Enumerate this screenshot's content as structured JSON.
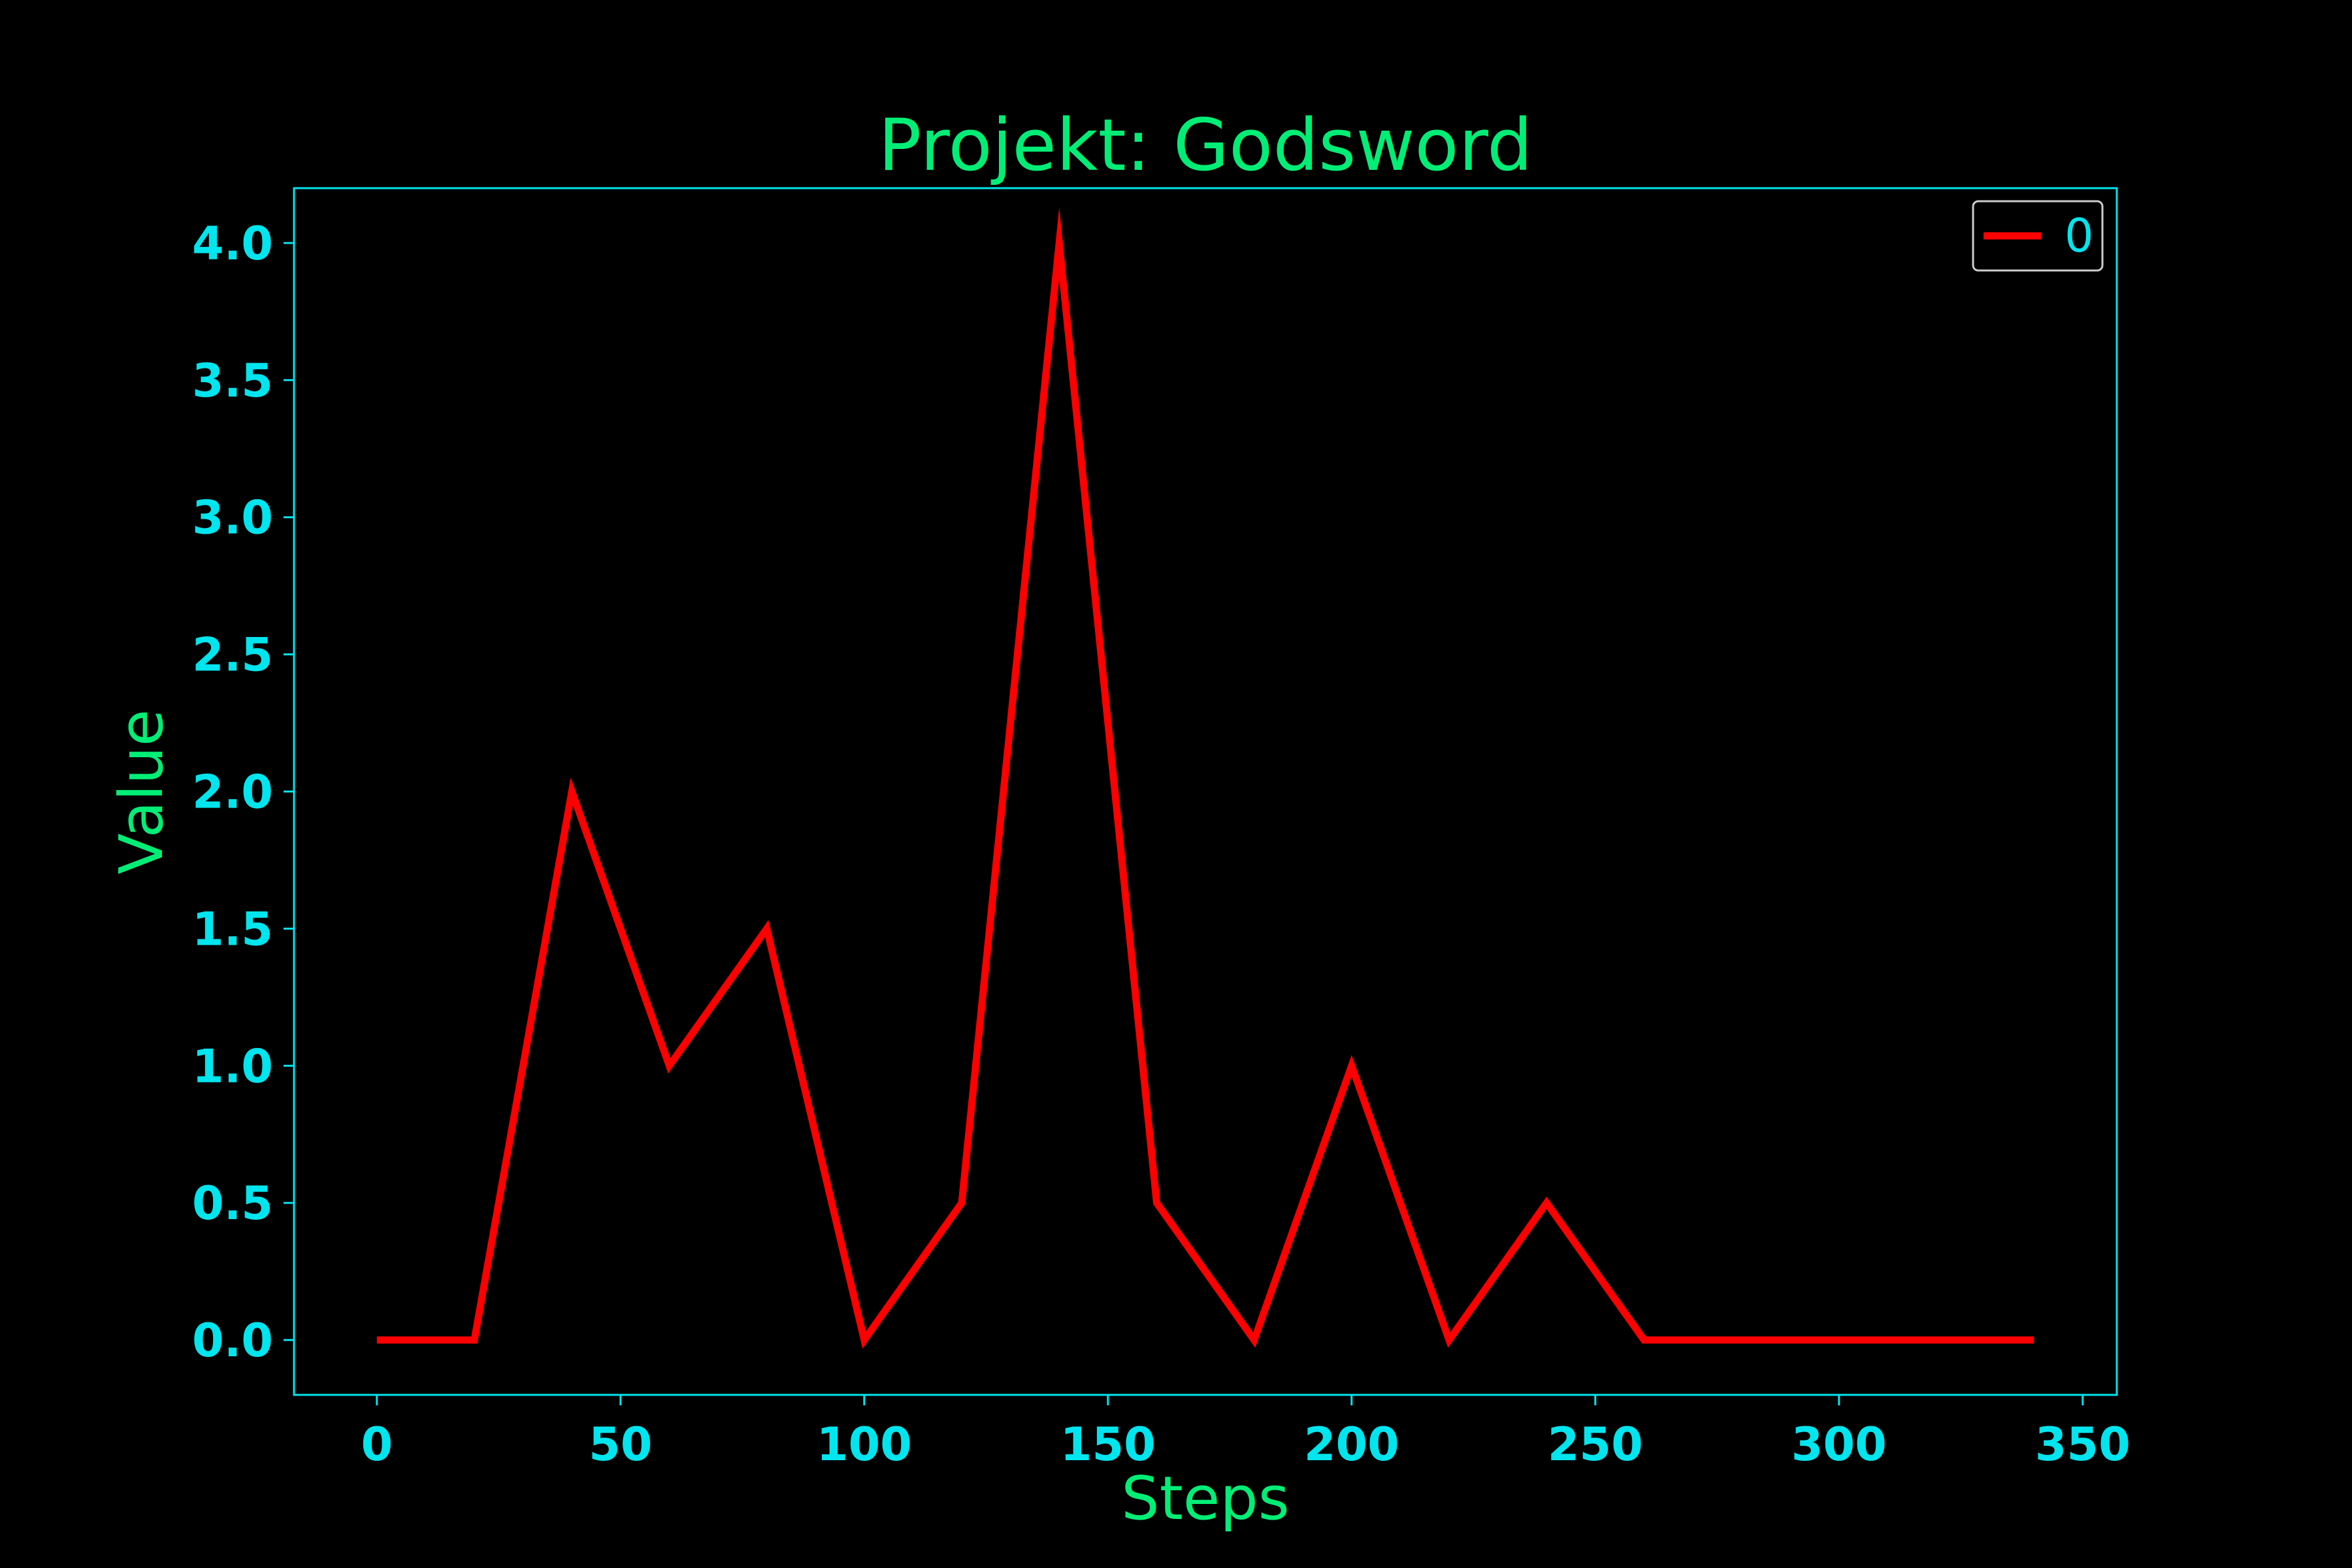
{
  "colors": {
    "background": "#000000",
    "axes": "#00e5ee",
    "tick_labels": "#00e5ee",
    "title": "#00ee76",
    "axis_labels": "#00ee76",
    "series_line": "#ff0000",
    "legend_text": "#00e5ee",
    "legend_border": "#cccccc"
  },
  "chart_data": {
    "type": "line",
    "title": "Projekt: Godsword",
    "xlabel": "Steps",
    "ylabel": "Value",
    "xlim": [
      -17,
      357
    ],
    "ylim": [
      -0.2,
      4.2
    ],
    "xticks": [
      0,
      50,
      100,
      150,
      200,
      250,
      300,
      350
    ],
    "xtick_labels": [
      "0",
      "50",
      "100",
      "150",
      "200",
      "250",
      "300",
      "350"
    ],
    "yticks": [
      0.0,
      0.5,
      1.0,
      1.5,
      2.0,
      2.5,
      3.0,
      3.5,
      4.0
    ],
    "ytick_labels": [
      "0.0",
      "0.5",
      "1.0",
      "1.5",
      "2.0",
      "2.5",
      "3.0",
      "3.5",
      "4.0"
    ],
    "grid": false,
    "legend_position": "top-right",
    "series": [
      {
        "name": "0",
        "x": [
          0,
          20,
          40,
          60,
          80,
          100,
          120,
          140,
          160,
          180,
          200,
          220,
          240,
          260,
          280,
          300,
          320,
          340
        ],
        "values": [
          0,
          0,
          2,
          1,
          1.5,
          0,
          0.5,
          4,
          0.5,
          0,
          1,
          0,
          0.5,
          0,
          0,
          0,
          0,
          0
        ]
      }
    ]
  }
}
